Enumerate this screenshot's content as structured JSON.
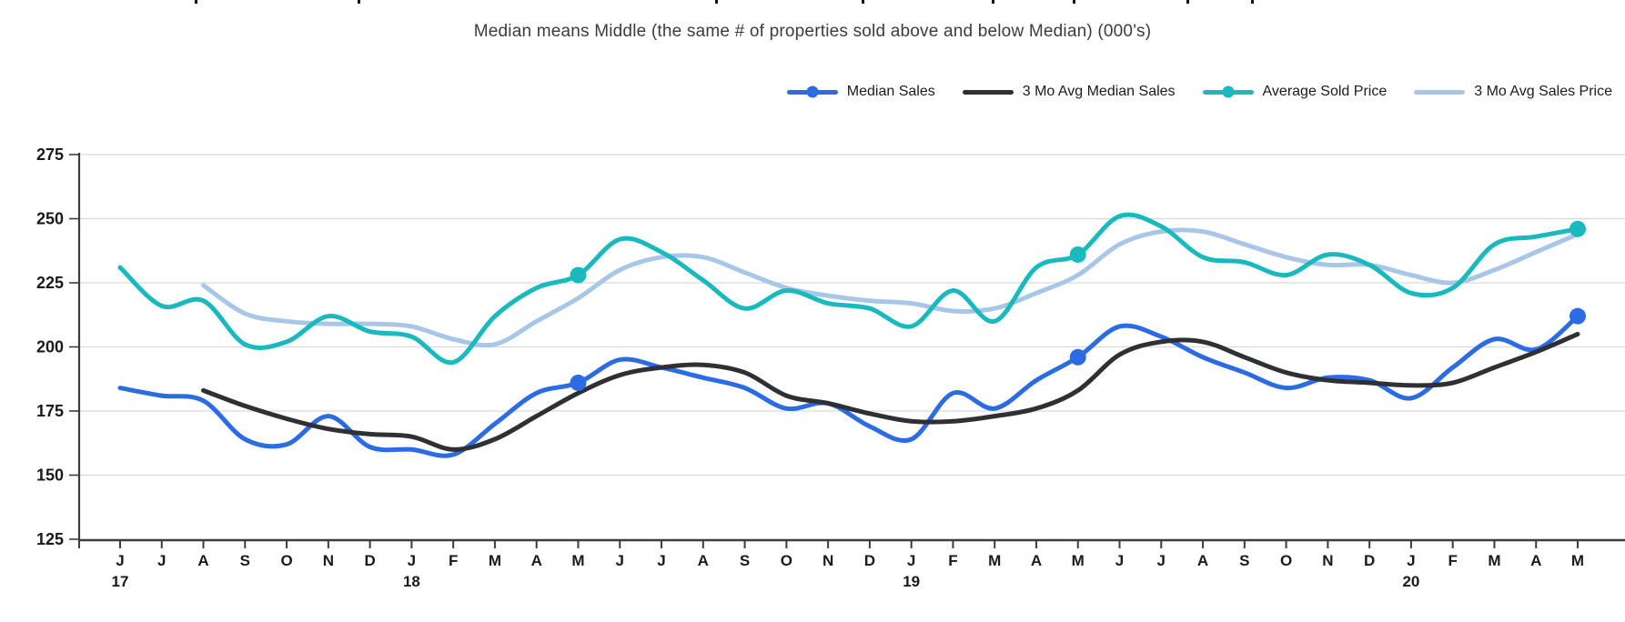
{
  "title": "Median means Middle (the same # of properties sold above and below Median) (000's)",
  "colors": {
    "median_sales": "#2b6be3",
    "avg3_median_sales": "#2e3033",
    "average_sold_price": "#19b9bd",
    "avg3_sales_price": "#a8c6e8",
    "gridline": "#d9d9d9",
    "axis": "#3d3d3d",
    "axis_text": "#1a1a1a",
    "title_text": "#3c3c3c"
  },
  "legend": [
    {
      "label": "Median Sales",
      "color": "#2b6be3",
      "marker": true
    },
    {
      "label": "3 Mo Avg Median Sales",
      "color": "#2e3033",
      "marker": false
    },
    {
      "label": "Average Sold Price",
      "color": "#19b9bd",
      "marker": true
    },
    {
      "label": "3 Mo Avg Sales Price",
      "color": "#a8c6e8",
      "marker": false
    }
  ],
  "chart_data": {
    "type": "line",
    "title": "Median means Middle (the same # of properties sold above and below Median) (000's)",
    "units": "thousands of dollars (000's)",
    "x_labels": [
      "J",
      "J",
      "A",
      "S",
      "O",
      "N",
      "D",
      "J",
      "F",
      "M",
      "A",
      "M",
      "J",
      "J",
      "A",
      "S",
      "O",
      "N",
      "D",
      "J",
      "F",
      "M",
      "A",
      "M",
      "J",
      "J",
      "A",
      "S",
      "O",
      "N",
      "D",
      "J",
      "F",
      "M",
      "A",
      "M"
    ],
    "year_labels": [
      {
        "index": 0,
        "label": "17"
      },
      {
        "index": 7,
        "label": "18"
      },
      {
        "index": 19,
        "label": "19"
      },
      {
        "index": 31,
        "label": "20"
      }
    ],
    "y_ticks": [
      125,
      150,
      175,
      200,
      225,
      250,
      275
    ],
    "ylim": [
      125,
      275
    ],
    "grid": true,
    "legend_position": "top-right",
    "smooth": true,
    "marker_month_indices": [
      11,
      23,
      35
    ],
    "series": [
      {
        "name": "Median Sales",
        "color": "#2b6be3",
        "markers": true,
        "values": [
          184,
          181,
          179,
          164,
          162,
          173,
          161,
          160,
          158,
          170,
          182,
          186,
          195,
          192,
          188,
          184,
          176,
          178,
          169,
          164,
          182,
          176,
          187,
          196,
          208,
          204,
          196,
          190,
          184,
          188,
          187,
          180,
          192,
          203,
          199,
          212
        ]
      },
      {
        "name": "3 Mo Avg Median Sales",
        "color": "#2e3033",
        "markers": false,
        "values": [
          null,
          null,
          183,
          177,
          172,
          168,
          166,
          165,
          160,
          164,
          173,
          182,
          189,
          192,
          193,
          190,
          181,
          178,
          174,
          171,
          171,
          173,
          176,
          183,
          197,
          202,
          202,
          196,
          190,
          187,
          186,
          185,
          186,
          192,
          198,
          205
        ]
      },
      {
        "name": "Average Sold Price",
        "color": "#19b9bd",
        "markers": true,
        "values": [
          231,
          216,
          218,
          201,
          202,
          212,
          206,
          204,
          194,
          212,
          223,
          228,
          242,
          237,
          226,
          215,
          222,
          217,
          215,
          208,
          222,
          210,
          231,
          236,
          251,
          247,
          235,
          233,
          228,
          236,
          232,
          221,
          223,
          240,
          243,
          246
        ]
      },
      {
        "name": "3 Mo Avg Sales Price",
        "color": "#a8c6e8",
        "markers": false,
        "values": [
          null,
          null,
          224,
          213,
          210,
          209,
          209,
          208,
          203,
          201,
          210,
          219,
          230,
          235,
          235,
          229,
          223,
          220,
          218,
          217,
          214,
          215,
          221,
          228,
          240,
          245,
          245,
          240,
          235,
          232,
          232,
          228,
          225,
          230,
          237,
          244
        ]
      }
    ]
  },
  "top_clipped_marks": {
    "positions": [
      214,
      393,
      786,
      947,
      1090,
      1179,
      1304,
      1375
    ]
  }
}
